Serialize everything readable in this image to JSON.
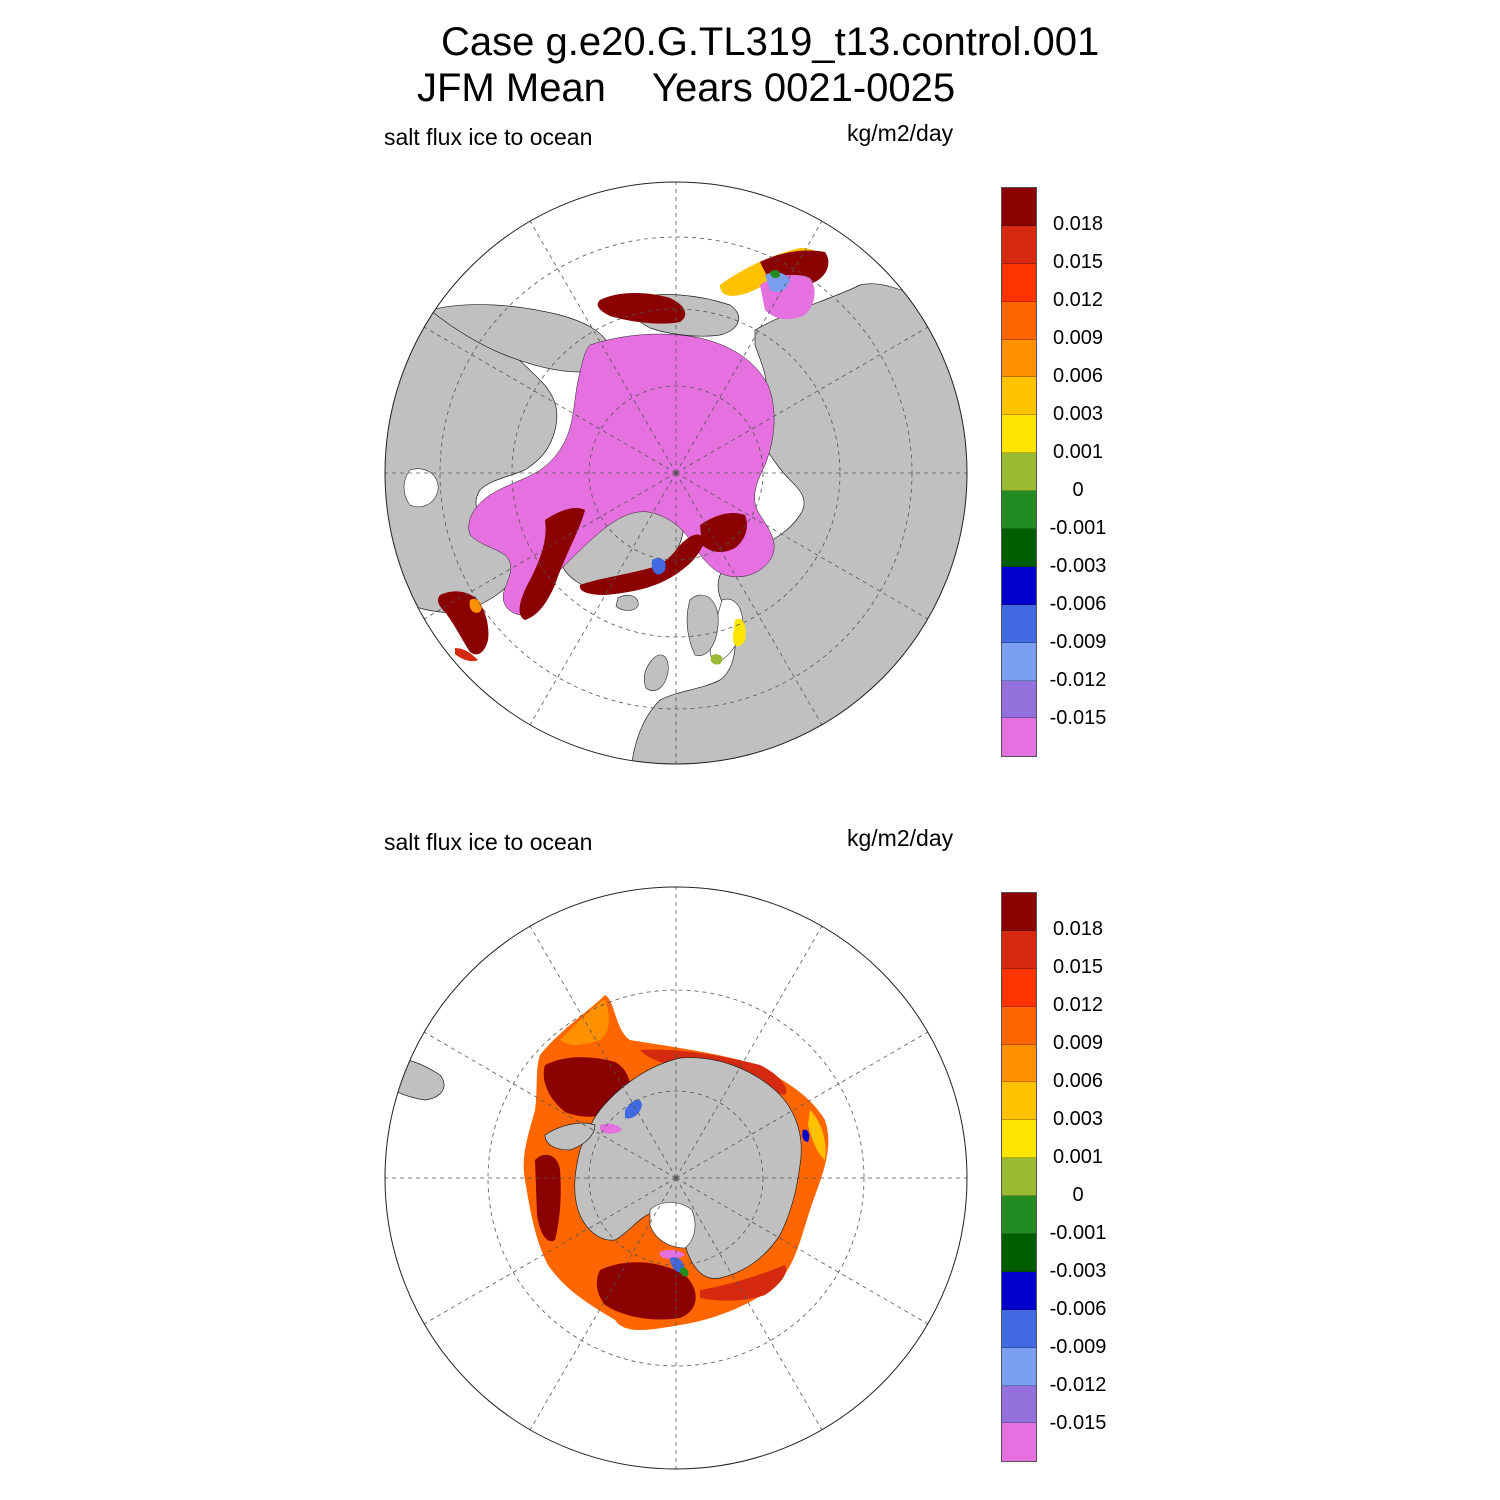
{
  "title": {
    "line1": "Case g.e20.G.TL319_t13.control.001",
    "line2_left": "JFM Mean",
    "line2_right": "Years 0021-0025"
  },
  "colors": {
    "land": "#c0c0c0",
    "ocean": "#ffffff",
    "grid": "#555555"
  },
  "colorbar": {
    "colors": [
      "#8b0000",
      "#d62a10",
      "#ff3300",
      "#ff6600",
      "#ff9100",
      "#ffc200",
      "#ffe500",
      "#99bb33",
      "#228b22",
      "#005e00",
      "#0000cc",
      "#4169e1",
      "#7b9ff0",
      "#9370db",
      "#e570df"
    ],
    "labels": [
      "0.018",
      "0.015",
      "0.012",
      "0.009",
      "0.006",
      "0.003",
      "0.001",
      "0",
      "-0.001",
      "-0.003",
      "-0.006",
      "-0.009",
      "-0.012",
      "-0.015"
    ]
  },
  "panels": [
    {
      "id": "north",
      "left_label": "salt flux ice to ocean",
      "right_label": "kg/m2/day"
    },
    {
      "id": "south",
      "left_label": "salt flux ice to ocean",
      "right_label": "kg/m2/day"
    }
  ]
}
